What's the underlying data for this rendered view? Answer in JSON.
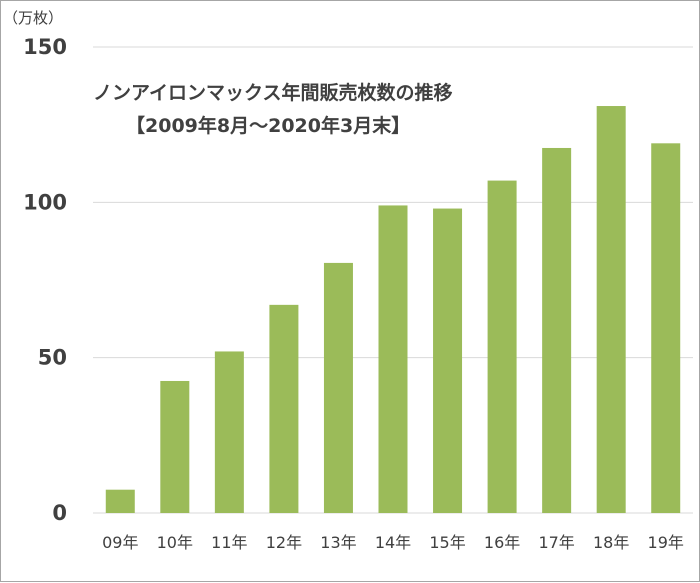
{
  "chart_data": {
    "type": "bar",
    "title": "ノンアイロンマックス年間販売枚数の推移",
    "subtitle": "【2009年8月～2020年3月末】",
    "y_unit_label": "（万枚）",
    "categories": [
      "09年",
      "10年",
      "11年",
      "12年",
      "13年",
      "14年",
      "15年",
      "16年",
      "17年",
      "18年",
      "19年"
    ],
    "values": [
      7.5,
      42.5,
      52,
      67,
      80.5,
      99,
      98,
      107,
      117.5,
      131,
      119
    ],
    "ylim": [
      0,
      150
    ],
    "yticks": [
      0,
      50,
      100,
      150
    ],
    "grid": true,
    "bar_color": "#9bbb59",
    "grid_color": "#d9d9d9"
  }
}
